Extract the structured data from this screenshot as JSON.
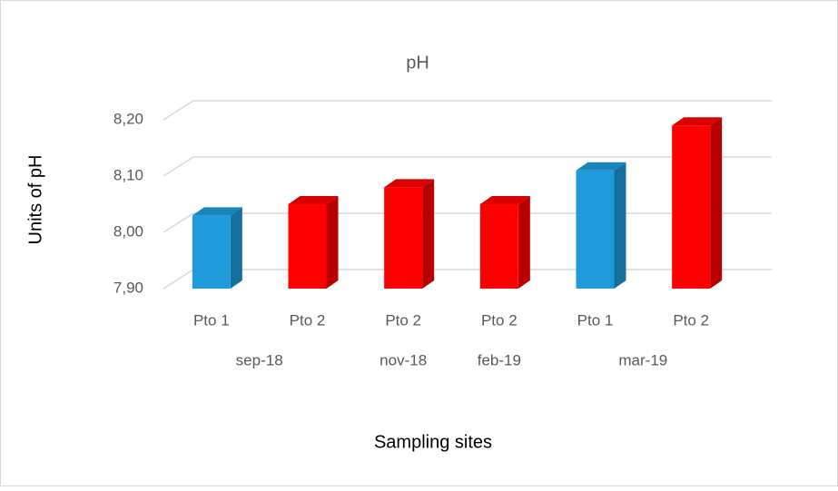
{
  "chart_data": {
    "type": "bar3d",
    "title": "pH",
    "x_label": "Sampling sites",
    "y_label": "Units of pH",
    "categories": [
      "Pto 1",
      "Pto 2",
      "Pto 2",
      "Pto 2",
      "Pto 1",
      "Pto 2"
    ],
    "group_labels": [
      "sep-18",
      null,
      "nov-18",
      "feb-19",
      "mar-19",
      null
    ],
    "values": [
      8.03,
      8.05,
      8.08,
      8.05,
      8.11,
      8.19
    ],
    "colors": [
      "#1f9bdc",
      "#ff0000",
      "#ff0000",
      "#ff0000",
      "#1f9bdc",
      "#ff0000"
    ],
    "ylim": [
      7.9,
      8.2
    ],
    "yticks": [
      {
        "value": 7.9,
        "label": "7,90"
      },
      {
        "value": 8.0,
        "label": "8,00"
      },
      {
        "value": 8.1,
        "label": "8,10"
      },
      {
        "value": 8.2,
        "label": "8,20"
      }
    ],
    "grid": true
  }
}
